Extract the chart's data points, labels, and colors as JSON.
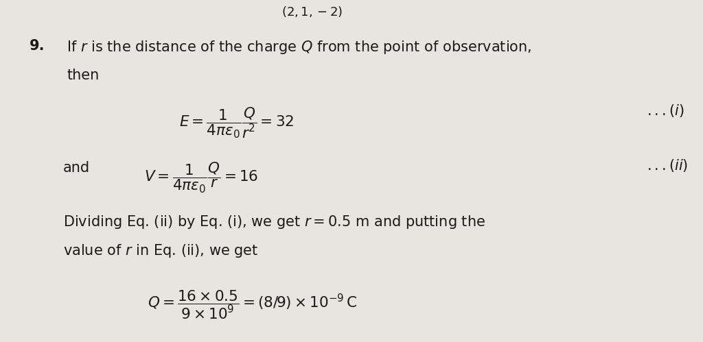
{
  "background_color": "#e8e4df",
  "text_color": "#1a1a1a",
  "figsize": [
    10.24,
    4.99
  ],
  "dpi": 100,
  "top_text": "$(2,1,-2)$",
  "item_number": "9.",
  "intro_line1": "If $r$ is the distance of the charge $Q$ from the point of observation,",
  "intro_line2": "then",
  "eq1_latex": "$E = \\dfrac{1}{4\\pi\\varepsilon_0}\\dfrac{Q}{r^2} = 32$",
  "eq1_label": "$...(i)$",
  "eq2_prefix": "and",
  "eq2_latex": "$V = \\dfrac{1}{4\\pi\\varepsilon_0}\\dfrac{Q}{r} = 16$",
  "eq2_label": "$...(ii)$",
  "text_line1": "Dividing Eq. (ii) by Eq. (i), we get $r = 0.5$ m and putting the",
  "text_line2": "value of $r$ in Eq. (ii), we get",
  "eq3_latex": "$Q = \\dfrac{16 \\times 0.5}{9 \\times 10^9} = (8/9) \\times 10^{-9}\\,\\mathrm{C}$"
}
